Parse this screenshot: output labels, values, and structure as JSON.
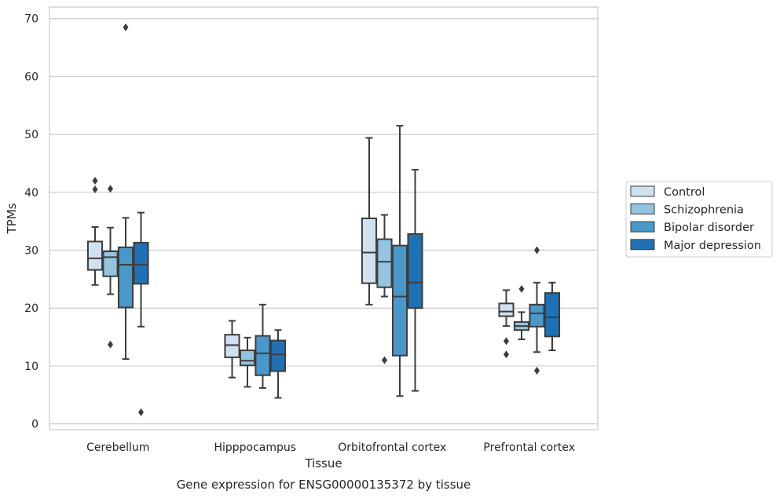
{
  "chart_data": {
    "type": "box",
    "caption": "Gene expression for ENSG00000135372 by tissue",
    "xlabel": "Tissue",
    "ylabel": "TPMs",
    "ylim": [
      -1,
      72
    ],
    "yticks": [
      0,
      10,
      20,
      30,
      40,
      50,
      60,
      70
    ],
    "grid": true,
    "legend_position": "right",
    "categories": [
      "Cerebellum",
      "Hipppocampus",
      "Orbitofrontal cortex",
      "Prefrontal cortex"
    ],
    "series": [
      {
        "name": "Control",
        "color": "#d0e1f2",
        "boxes": [
          {
            "whisker_low": 24.0,
            "q1": 26.6,
            "median": 28.6,
            "q3": 31.5,
            "whisker_high": 34.0,
            "outliers": [
              40.5,
              42.0
            ]
          },
          {
            "whisker_low": 8.0,
            "q1": 11.5,
            "median": 13.6,
            "q3": 15.4,
            "whisker_high": 17.8,
            "outliers": []
          },
          {
            "whisker_low": 20.6,
            "q1": 24.3,
            "median": 29.6,
            "q3": 35.5,
            "whisker_high": 49.4,
            "outliers": []
          },
          {
            "whisker_low": 16.9,
            "q1": 18.6,
            "median": 19.4,
            "q3": 20.8,
            "whisker_high": 23.1,
            "outliers": [
              12.0,
              14.3
            ]
          }
        ]
      },
      {
        "name": "Schizophrenia",
        "color": "#94c4df",
        "boxes": [
          {
            "whisker_low": 22.4,
            "q1": 25.5,
            "median": 28.8,
            "q3": 29.8,
            "whisker_high": 33.9,
            "outliers": [
              13.7,
              40.6
            ]
          },
          {
            "whisker_low": 6.4,
            "q1": 10.1,
            "median": 10.9,
            "q3": 12.7,
            "whisker_high": 14.9,
            "outliers": []
          },
          {
            "whisker_low": 22.0,
            "q1": 23.6,
            "median": 28.0,
            "q3": 31.9,
            "whisker_high": 36.1,
            "outliers": [
              11.0
            ]
          },
          {
            "whisker_low": 14.6,
            "q1": 16.2,
            "median": 16.9,
            "q3": 17.6,
            "whisker_high": 19.3,
            "outliers": [
              23.3
            ]
          }
        ]
      },
      {
        "name": "Bipolar disorder",
        "color": "#4a98c9",
        "boxes": [
          {
            "whisker_low": 11.2,
            "q1": 20.1,
            "median": 27.5,
            "q3": 30.5,
            "whisker_high": 35.6,
            "outliers": [
              68.5
            ]
          },
          {
            "whisker_low": 6.2,
            "q1": 8.4,
            "median": 12.2,
            "q3": 15.2,
            "whisker_high": 20.6,
            "outliers": []
          },
          {
            "whisker_low": 4.8,
            "q1": 11.8,
            "median": 22.0,
            "q3": 30.8,
            "whisker_high": 51.5,
            "outliers": []
          },
          {
            "whisker_low": 12.4,
            "q1": 16.8,
            "median": 19.1,
            "q3": 20.6,
            "whisker_high": 24.4,
            "outliers": [
              9.2,
              30.0
            ]
          }
        ]
      },
      {
        "name": "Major depression",
        "color": "#2070b4",
        "boxes": [
          {
            "whisker_low": 16.8,
            "q1": 24.2,
            "median": 27.5,
            "q3": 31.3,
            "whisker_high": 36.5,
            "outliers": [
              2.0
            ]
          },
          {
            "whisker_low": 4.5,
            "q1": 9.1,
            "median": 12.0,
            "q3": 14.4,
            "whisker_high": 16.2,
            "outliers": []
          },
          {
            "whisker_low": 5.7,
            "q1": 20.0,
            "median": 24.4,
            "q3": 32.8,
            "whisker_high": 43.9,
            "outliers": []
          },
          {
            "whisker_low": 12.7,
            "q1": 15.1,
            "median": 18.4,
            "q3": 22.6,
            "whisker_high": 24.4,
            "outliers": []
          }
        ]
      }
    ]
  }
}
